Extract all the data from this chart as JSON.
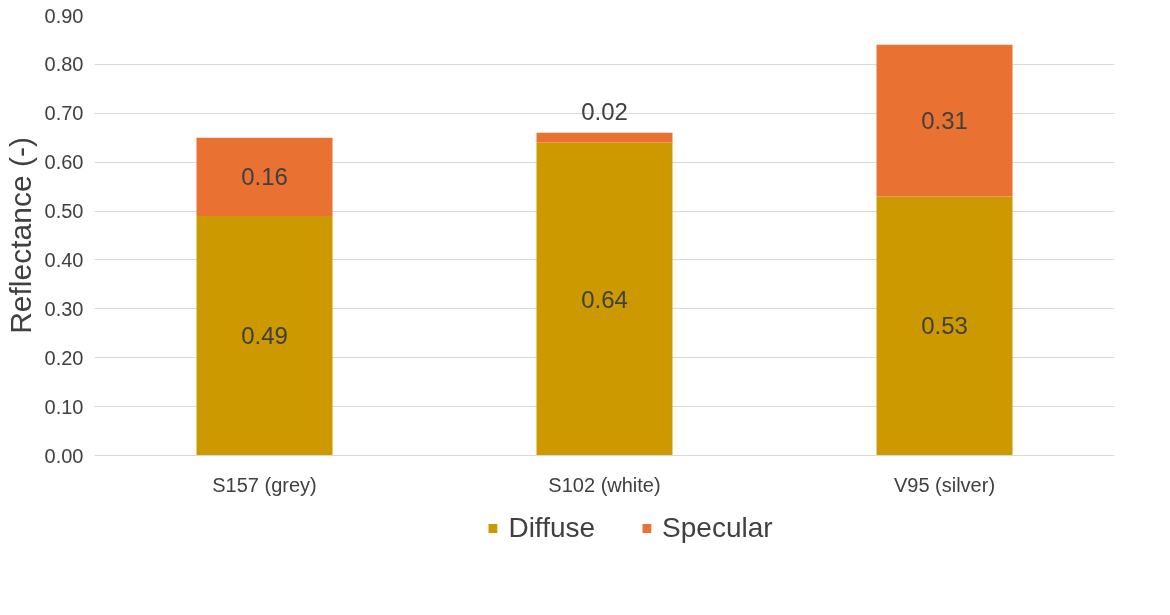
{
  "chart_data": {
    "type": "bar",
    "stacked": true,
    "ylabel": "Reflectance (-)",
    "categories": [
      "S157 (grey)",
      "S102 (white)",
      "V95 (silver)"
    ],
    "series": [
      {
        "name": "Diffuse",
        "color": "#cc9900",
        "values": [
          0.49,
          0.64,
          0.53
        ]
      },
      {
        "name": "Specular",
        "color": "#e97132",
        "values": [
          0.16,
          0.02,
          0.31
        ]
      }
    ],
    "ylim": [
      0,
      0.9
    ],
    "yticks": [
      {
        "value": 0,
        "label": "0.00"
      },
      {
        "value": 0.1,
        "label": "0.10"
      },
      {
        "value": 0.2,
        "label": "0.20"
      },
      {
        "value": 0.3,
        "label": "0.30"
      },
      {
        "value": 0.4,
        "label": "0.40"
      },
      {
        "value": 0.5,
        "label": "0.50"
      },
      {
        "value": 0.6,
        "label": "0.60"
      },
      {
        "value": 0.7,
        "label": "0.70"
      },
      {
        "value": 0.8,
        "label": "0.80"
      },
      {
        "value": 0.9,
        "label": "0.90"
      }
    ],
    "grid": "y",
    "legend": "bottom",
    "data_labels": true
  }
}
